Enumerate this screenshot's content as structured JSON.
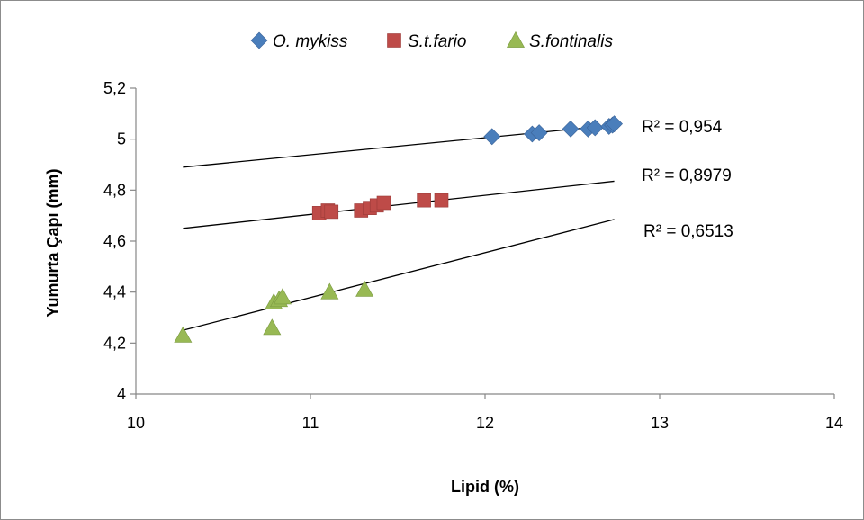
{
  "chart_data": {
    "type": "scatter",
    "title": "",
    "xlabel": "Lipid (%)",
    "ylabel": "Yumurta Çapı (mm)",
    "xlim": [
      10,
      14
    ],
    "ylim": [
      4,
      5.2
    ],
    "x_ticks": [
      10,
      11,
      12,
      13,
      14
    ],
    "x_tick_labels": [
      "10",
      "11",
      "12",
      "13",
      "14"
    ],
    "y_ticks": [
      4,
      4.2,
      4.4,
      4.6,
      4.8,
      5,
      5.2
    ],
    "y_tick_labels": [
      "4",
      "4,2",
      "4,4",
      "4,6",
      "4,8",
      "5",
      "5,2"
    ],
    "grid": false,
    "legend_position": "top-center",
    "series": [
      {
        "name": "O. mykiss",
        "marker": "diamond",
        "color": "#4a7ebb",
        "points": [
          [
            12.04,
            5.01
          ],
          [
            12.27,
            5.02
          ],
          [
            12.31,
            5.025
          ],
          [
            12.49,
            5.04
          ],
          [
            12.59,
            5.04
          ],
          [
            12.63,
            5.045
          ],
          [
            12.71,
            5.05
          ],
          [
            12.73,
            5.055
          ],
          [
            12.74,
            5.06
          ]
        ],
        "trendline": {
          "x": [
            10.27,
            12.74
          ],
          "y": [
            4.89,
            5.055
          ]
        },
        "r2_label": "R² = 0,954"
      },
      {
        "name": "S.t.fario",
        "marker": "square",
        "color": "#be4b48",
        "points": [
          [
            11.05,
            4.71
          ],
          [
            11.1,
            4.72
          ],
          [
            11.12,
            4.715
          ],
          [
            11.29,
            4.72
          ],
          [
            11.34,
            4.73
          ],
          [
            11.38,
            4.74
          ],
          [
            11.42,
            4.75
          ],
          [
            11.65,
            4.76
          ],
          [
            11.75,
            4.76
          ]
        ],
        "trendline": {
          "x": [
            10.27,
            12.74
          ],
          "y": [
            4.65,
            4.835
          ]
        },
        "r2_label": "R² = 0,8979"
      },
      {
        "name": "S.fontinalis",
        "marker": "triangle",
        "color": "#98b954",
        "points": [
          [
            10.27,
            4.23
          ],
          [
            10.78,
            4.26
          ],
          [
            10.79,
            4.36
          ],
          [
            10.82,
            4.37
          ],
          [
            10.84,
            4.38
          ],
          [
            11.11,
            4.4
          ],
          [
            11.31,
            4.41
          ]
        ],
        "trendline": {
          "x": [
            10.27,
            12.74
          ],
          "y": [
            4.25,
            4.685
          ]
        },
        "r2_label": "R² = 0,6513"
      }
    ]
  }
}
